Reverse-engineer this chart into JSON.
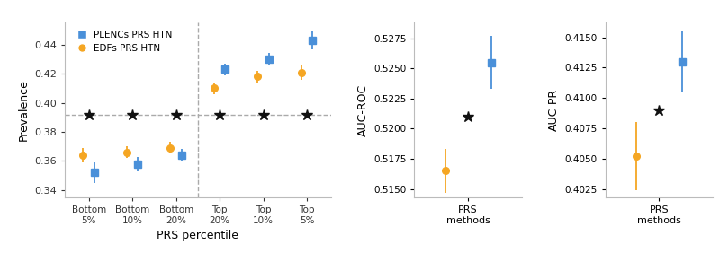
{
  "left_plot": {
    "categories": [
      "Bottom\n5%",
      "Bottom\n10%",
      "Bottom\n20%",
      "Top\n20%",
      "Top\n10%",
      "Top\n5%"
    ],
    "plencs_values": [
      0.352,
      0.358,
      0.364,
      0.423,
      0.43,
      0.443
    ],
    "plencs_yerr_lo": [
      0.007,
      0.005,
      0.004,
      0.004,
      0.004,
      0.006
    ],
    "plencs_yerr_hi": [
      0.007,
      0.005,
      0.004,
      0.004,
      0.004,
      0.006
    ],
    "edfs_values": [
      0.364,
      0.366,
      0.369,
      0.41,
      0.418,
      0.421
    ],
    "edfs_yerr_lo": [
      0.005,
      0.004,
      0.004,
      0.004,
      0.004,
      0.005
    ],
    "edfs_yerr_hi": [
      0.005,
      0.004,
      0.004,
      0.004,
      0.004,
      0.005
    ],
    "star_value": 0.392,
    "dashed_line_y": 0.392,
    "vline_x": 2.5,
    "ylabel": "Prevalence",
    "xlabel": "PRS percentile",
    "ylim": [
      0.335,
      0.455
    ],
    "yticks": [
      0.34,
      0.36,
      0.38,
      0.4,
      0.42,
      0.44
    ]
  },
  "middle_plot": {
    "plencs_value": 0.5255,
    "plencs_yerr_lo": 0.0022,
    "plencs_yerr_hi": 0.0022,
    "edfs_value": 0.5165,
    "edfs_yerr_lo": 0.0018,
    "edfs_yerr_hi": 0.0018,
    "star_value": 0.521,
    "ylabel": "AUC-ROC",
    "xlabel": "PRS\nmethods",
    "ylim": [
      0.5143,
      0.5288
    ],
    "yticks": [
      0.515,
      0.5175,
      0.52,
      0.5225,
      0.525,
      0.5275
    ]
  },
  "right_plot": {
    "plencs_value": 0.413,
    "plencs_yerr_lo": 0.0025,
    "plencs_yerr_hi": 0.0025,
    "edfs_value": 0.4052,
    "edfs_yerr_lo": 0.0028,
    "edfs_yerr_hi": 0.0028,
    "star_value": 0.409,
    "ylabel": "AUC-PR",
    "xlabel": "PRS\nmethods",
    "ylim": [
      0.4018,
      0.4162
    ],
    "yticks": [
      0.4025,
      0.405,
      0.4075,
      0.41,
      0.4125,
      0.415
    ]
  },
  "colors": {
    "plencs": "#4A90D9",
    "edfs": "#F5A623",
    "star": "#111111",
    "dashed": "#aaaaaa"
  },
  "legend_labels": [
    "PLENCs PRS HTN",
    "EDFs PRS HTN"
  ],
  "bg_color": "#f8f8f8"
}
